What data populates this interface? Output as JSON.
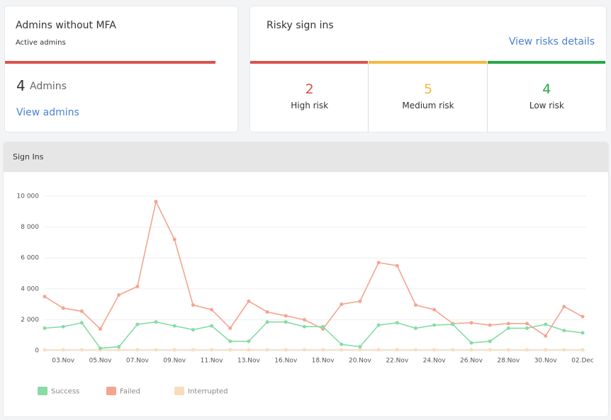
{
  "admins_card": {
    "title": "Admins without MFA",
    "subtitle": "Active admins",
    "count": 4,
    "unit": "Admins",
    "link": "View admins",
    "color": "#d9534f"
  },
  "risky_card": {
    "title": "Risky sign ins",
    "link": "View risks details",
    "cells": [
      {
        "value": 2,
        "label": "High risk",
        "color": "#d9534f"
      },
      {
        "value": 5,
        "label": "Medium risk",
        "color": "#f5b942"
      },
      {
        "value": 4,
        "label": "Low risk",
        "color": "#28a745"
      }
    ]
  },
  "chart_data": {
    "type": "line",
    "title": "Sign Ins",
    "categories": [
      null,
      "03.Nov",
      null,
      "05.Nov",
      null,
      "07.Nov",
      null,
      "09.Nov",
      null,
      "11.Nov",
      null,
      "13.Nov",
      null,
      "16.Nov",
      null,
      "18.Nov",
      null,
      "20.Nov",
      null,
      "22.Nov",
      null,
      "24.Nov",
      null,
      "26.Nov",
      null,
      "28.Nov",
      null,
      "30.Nov",
      null,
      "02.Dec"
    ],
    "series": [
      {
        "name": "Success",
        "color": "#86dca3",
        "values": [
          1450,
          1550,
          1800,
          150,
          250,
          1700,
          1850,
          1600,
          1350,
          1600,
          600,
          600,
          1850,
          1850,
          1550,
          1550,
          400,
          250,
          1650,
          1800,
          1450,
          1650,
          1700,
          500,
          600,
          1450,
          1450,
          1700,
          1300,
          1150
        ]
      },
      {
        "name": "Failed",
        "color": "#f5a48f",
        "values": [
          3500,
          2750,
          2550,
          1400,
          3600,
          4150,
          9650,
          7200,
          2950,
          2650,
          1450,
          3200,
          2500,
          2250,
          2000,
          1400,
          3000,
          3200,
          5700,
          5500,
          2950,
          2650,
          1750,
          1800,
          1650,
          1750,
          1750,
          950,
          2850,
          2200
        ]
      },
      {
        "name": "Interrupted",
        "color": "#f8dcbc",
        "values": [
          50,
          50,
          50,
          50,
          50,
          50,
          50,
          50,
          50,
          50,
          50,
          50,
          50,
          50,
          50,
          50,
          50,
          50,
          50,
          50,
          50,
          50,
          50,
          50,
          50,
          50,
          50,
          50,
          50,
          50
        ]
      }
    ],
    "ylim": [
      0,
      10000
    ],
    "yticks": [
      0,
      {
        "value": 2000,
        "label": "2 000"
      },
      {
        "value": 4000,
        "label": "4 000"
      },
      {
        "value": 6000,
        "label": "6 000"
      },
      {
        "value": 8000,
        "label": "8 000"
      },
      {
        "value": 10000,
        "label": "10 000"
      }
    ],
    "grid": true
  }
}
